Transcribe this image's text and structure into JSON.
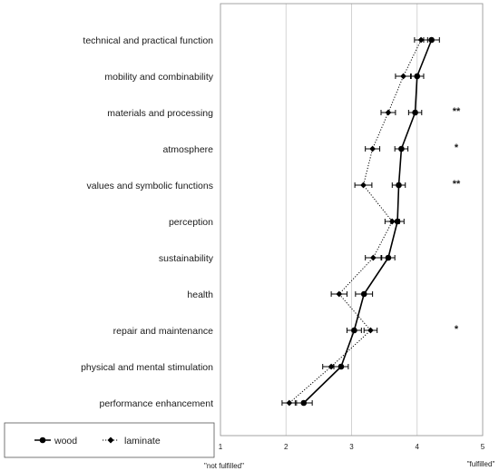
{
  "chart_data": {
    "type": "scatter",
    "orientation": "horizontal",
    "categories": [
      "technical and practical function",
      "mobility and combinability",
      "materials and processing",
      "atmosphere",
      "values and symbolic functions",
      "perception",
      "sustainability",
      "health",
      "repair and maintenance",
      "physical and mental stimulation",
      "performance enhancement"
    ],
    "series": [
      {
        "name": "wood",
        "line_style": "solid",
        "marker": "circle",
        "values": [
          4.22,
          4.0,
          3.97,
          3.76,
          3.72,
          3.7,
          3.56,
          3.19,
          3.04,
          2.84,
          2.27
        ],
        "error": [
          0.12,
          0.1,
          0.1,
          0.1,
          0.1,
          0.1,
          0.1,
          0.13,
          0.11,
          0.11,
          0.13
        ]
      },
      {
        "name": "laminate",
        "line_style": "dotted",
        "marker": "diamond",
        "values": [
          4.06,
          3.79,
          3.56,
          3.32,
          3.18,
          3.62,
          3.33,
          2.81,
          3.29,
          2.69,
          2.05
        ],
        "error": [
          0.1,
          0.12,
          0.11,
          0.11,
          0.13,
          0.11,
          0.12,
          0.12,
          0.1,
          0.13,
          0.11
        ]
      }
    ],
    "significance": [
      "",
      "",
      "**",
      "*",
      "**",
      "",
      "",
      "",
      "*",
      "",
      ""
    ],
    "x_ticks": [
      "1",
      "2",
      "3",
      "4",
      "5"
    ],
    "xlim": [
      1,
      5
    ],
    "grid": true,
    "x_end_labels": {
      "left": "\"not fulfilled\"",
      "right": "\"fulfilled\""
    },
    "legend_position": "bottom-left"
  }
}
